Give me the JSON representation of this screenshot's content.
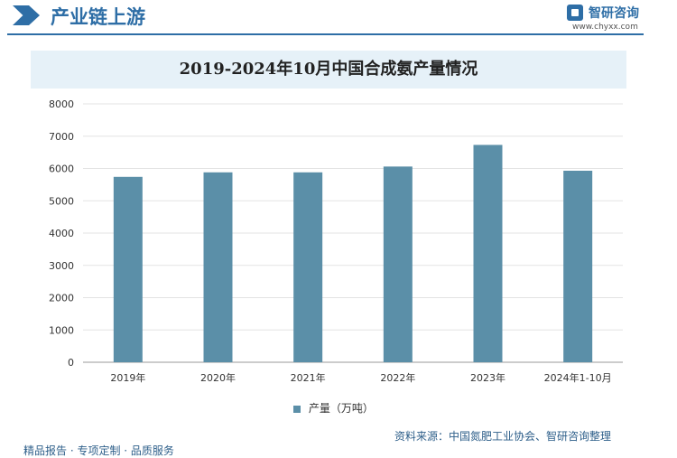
{
  "header": {
    "section_title": "产业链上游",
    "brand_name": "智研咨询",
    "brand_url": "www.chyxx.com"
  },
  "chart_data": {
    "type": "bar",
    "title": "2019-2024年10月中国合成氨产量情况",
    "categories": [
      "2019年",
      "2020年",
      "2021年",
      "2022年",
      "2023年",
      "2024年1-10月"
    ],
    "series": [
      {
        "name": "产量（万吨）",
        "values": [
          5740,
          5880,
          5880,
          6060,
          6730,
          5930
        ]
      }
    ],
    "ylim": [
      0,
      8000
    ],
    "yticks": [
      0,
      1000,
      2000,
      3000,
      4000,
      5000,
      6000,
      7000,
      8000
    ],
    "grid": true,
    "legend_position": "bottom",
    "colors": {
      "bar": "#5b8fa8",
      "grid": "#e3e3e3",
      "accent": "#2e6ea6"
    }
  },
  "footer": {
    "source": "资料来源：中国氮肥工业协会、智研咨询整理",
    "tagline": "精品报告 · 专项定制 · 品质服务"
  }
}
